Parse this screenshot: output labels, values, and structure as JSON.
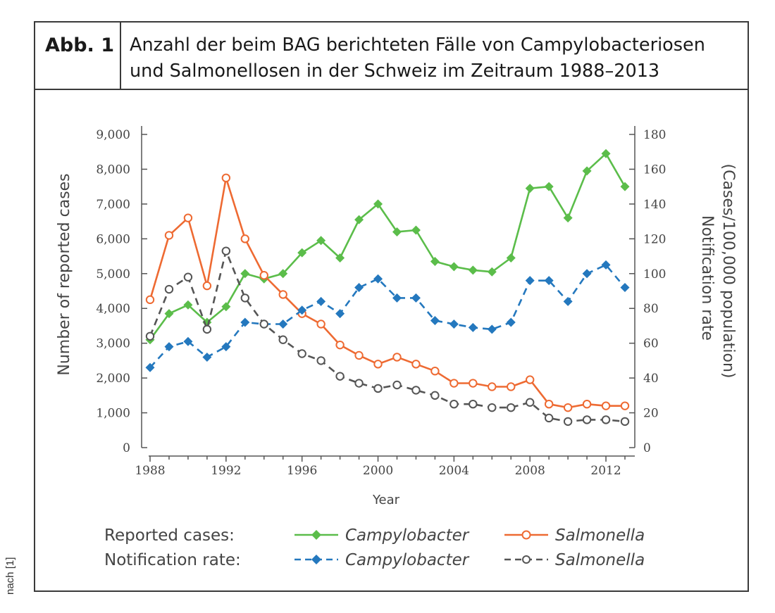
{
  "figure": {
    "label": "Abb. 1",
    "caption_line1": "Anzahl der beim BAG berichteten Fälle von Campylobacteriosen",
    "caption_line2": "und Salmonellosen in der Schweiz im Zeitraum 1988–2013",
    "source_note": "nach [1]"
  },
  "colors": {
    "campylobacter": "#5bbd4a",
    "salmonella": "#ee6a32",
    "campylobacter_rate": "#2478be",
    "salmonella_rate": "#555555",
    "axis": "#555555"
  },
  "chart_data": {
    "type": "line",
    "title": "",
    "xlabel": "Year",
    "ylabel_left": "Number of reported cases",
    "ylabel_right_line1": "Notification rate",
    "ylabel_right_line2": "(Cases/100,000 population)",
    "xlim": [
      1988,
      2013
    ],
    "ylim_left": [
      0,
      9000
    ],
    "ylim_right": [
      0,
      180
    ],
    "x_ticks": [
      1988,
      1992,
      1996,
      2000,
      2004,
      2008,
      2012
    ],
    "y_ticks_left": [
      "0",
      "1,000",
      "2,000",
      "3,000",
      "4,000",
      "5,000",
      "6,000",
      "7,000",
      "8,000",
      "9,000"
    ],
    "y_tick_values_left": [
      0,
      1000,
      2000,
      3000,
      4000,
      5000,
      6000,
      7000,
      8000,
      9000
    ],
    "y_ticks_right": [
      "0",
      "20",
      "40",
      "60",
      "80",
      "100",
      "120",
      "140",
      "160",
      "180"
    ],
    "y_tick_values_right": [
      0,
      20,
      40,
      60,
      80,
      100,
      120,
      140,
      160,
      180
    ],
    "x": [
      1988,
      1989,
      1990,
      1991,
      1992,
      1993,
      1994,
      1995,
      1996,
      1997,
      1998,
      1999,
      2000,
      2001,
      2002,
      2003,
      2004,
      2005,
      2006,
      2007,
      2008,
      2009,
      2010,
      2011,
      2012,
      2013
    ],
    "series": [
      {
        "name": "Campylobacter",
        "group": "Reported cases",
        "axis": "left",
        "style": "solid",
        "marker": "diamond",
        "color_key": "campylobacter",
        "values": [
          3100,
          3850,
          4100,
          3600,
          4050,
          5000,
          4850,
          5000,
          5600,
          5950,
          5450,
          6550,
          7000,
          6200,
          6250,
          5350,
          5200,
          5100,
          5050,
          5450,
          7450,
          7500,
          6600,
          7950,
          8450,
          7500
        ]
      },
      {
        "name": "Salmonella",
        "group": "Reported cases",
        "axis": "left",
        "style": "solid",
        "marker": "circle",
        "color_key": "salmonella",
        "values": [
          4250,
          6100,
          6600,
          4650,
          7750,
          6000,
          4950,
          4400,
          3850,
          3550,
          2950,
          2650,
          2400,
          2600,
          2400,
          2200,
          1850,
          1850,
          1750,
          1750,
          1950,
          1250,
          1150,
          1250,
          1200,
          1200
        ]
      },
      {
        "name": "Campylobacter",
        "group": "Notification rate",
        "axis": "right",
        "style": "dashed",
        "marker": "diamond",
        "color_key": "campylobacter_rate",
        "values": [
          46,
          58,
          61,
          52,
          58,
          72,
          71,
          71,
          79,
          84,
          77,
          92,
          97,
          86,
          86,
          73,
          71,
          69,
          68,
          72,
          96,
          96,
          84,
          100,
          105,
          92
        ]
      },
      {
        "name": "Salmonella",
        "group": "Notification rate",
        "axis": "right",
        "style": "dashed",
        "marker": "circle",
        "color_key": "salmonella_rate",
        "values": [
          64,
          91,
          98,
          68,
          113,
          86,
          71,
          62,
          54,
          50,
          41,
          37,
          34,
          36,
          33,
          30,
          25,
          25,
          23,
          23,
          26,
          17,
          15,
          16,
          16,
          15
        ]
      }
    ],
    "legend": {
      "row1_label": "Reported cases:",
      "row2_label": "Notification rate:",
      "campylobacter": "Campylobacter",
      "salmonella": "Salmonella"
    }
  }
}
